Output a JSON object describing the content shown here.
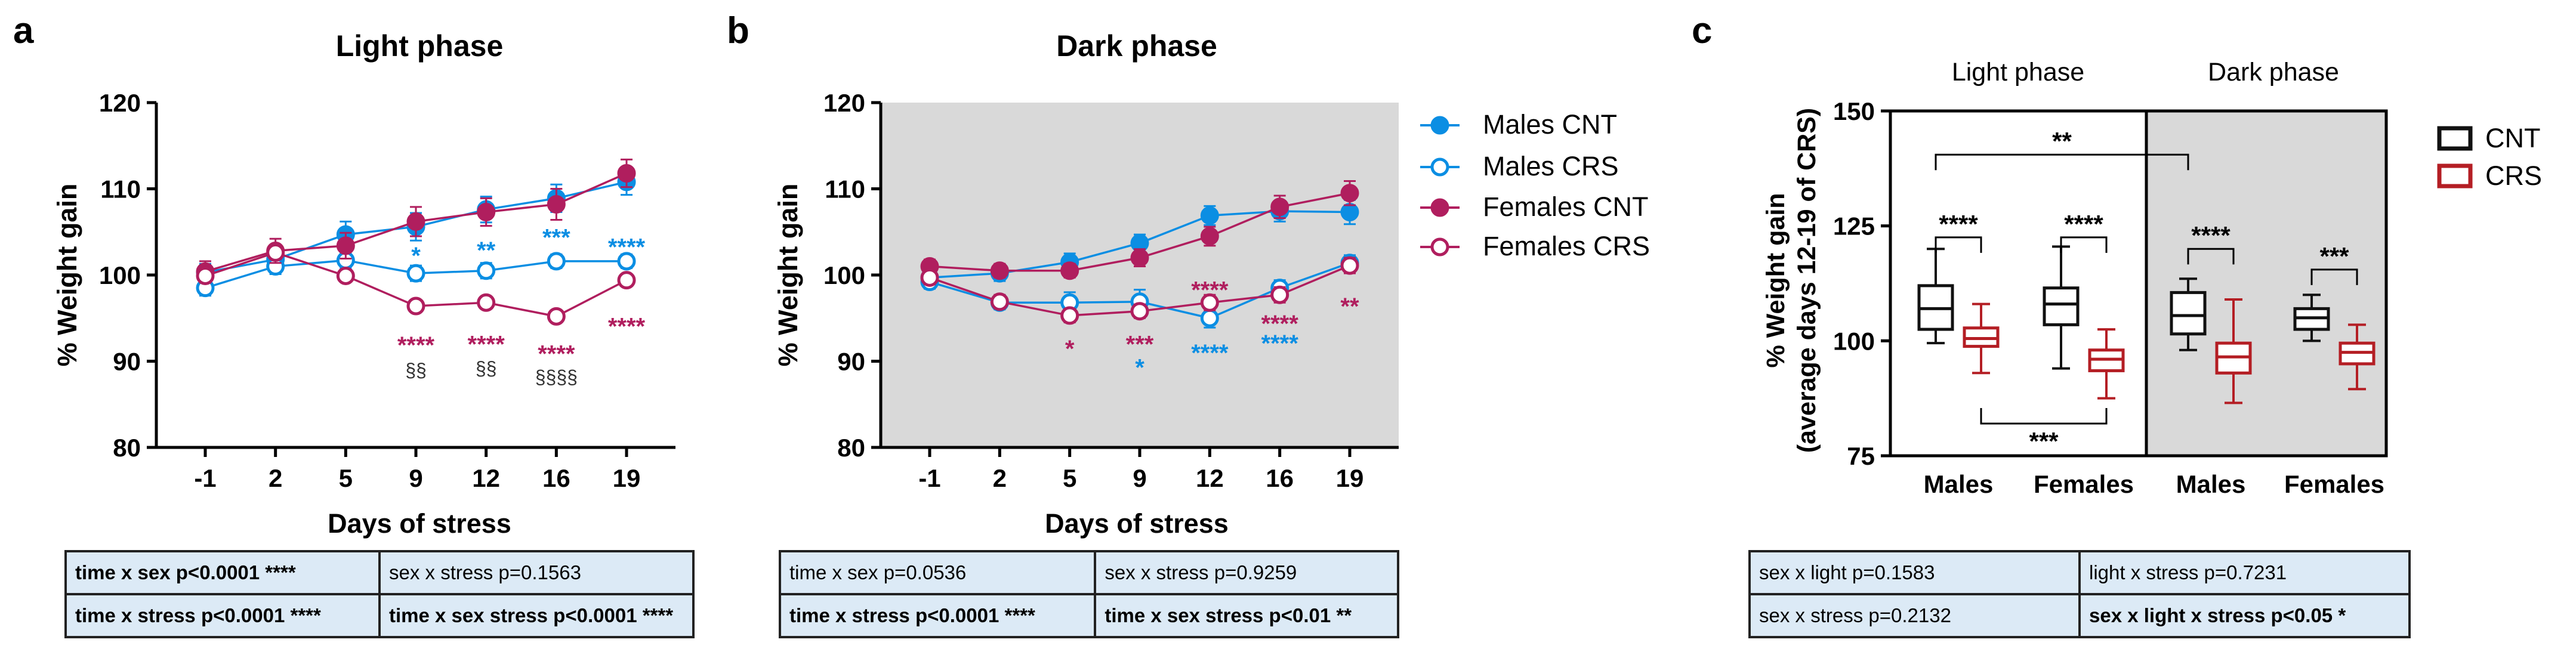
{
  "colors": {
    "males": "#0b8ee3",
    "females": "#b01e5e",
    "cnt_box": "#111111",
    "crs_box": "#b41e24",
    "dark_bg": "#d9d9d9",
    "table_bg": "#dceaf6"
  },
  "legend_line": {
    "males_cnt": "Males CNT",
    "males_crs": "Males CRS",
    "females_cnt": "Females CNT",
    "females_crs": "Females CRS"
  },
  "legend_box": {
    "cnt": "CNT",
    "crs": "CRS"
  },
  "chart_data": [
    {
      "panel": "a",
      "type": "line",
      "title": "Light phase",
      "xlabel": "Days of stress",
      "ylabel": "% Weight gain",
      "x": [
        -1,
        2,
        5,
        9,
        12,
        16,
        19
      ],
      "x_tick_labels": [
        "-1",
        "2",
        "5",
        "9",
        "12",
        "16",
        "19"
      ],
      "ylim": [
        80,
        120
      ],
      "yticks": [
        80,
        90,
        100,
        110,
        120
      ],
      "background": "white",
      "series": [
        {
          "name": "Males CNT",
          "values": [
            100.3,
            101.8,
            104.7,
            105.6,
            107.6,
            108.9,
            110.8
          ],
          "errors": [
            1.0,
            1.2,
            1.5,
            1.6,
            1.5,
            1.6,
            1.5
          ],
          "filled": true,
          "color": "#0b8ee3"
        },
        {
          "name": "Males CRS",
          "values": [
            98.5,
            101.0,
            101.7,
            100.2,
            100.5,
            101.6,
            101.6
          ],
          "errors": [
            0.9,
            0.9,
            0.9,
            0.9,
            0.9,
            0.8,
            0.8
          ],
          "filled": false,
          "color": "#0b8ee3"
        },
        {
          "name": "Females CNT",
          "values": [
            100.4,
            102.8,
            103.4,
            106.2,
            107.3,
            108.2,
            111.8
          ],
          "errors": [
            1.2,
            1.4,
            1.5,
            1.7,
            1.6,
            1.8,
            1.6
          ],
          "filled": true,
          "color": "#b01e5e"
        },
        {
          "name": "Females CRS",
          "values": [
            99.9,
            102.6,
            99.9,
            96.4,
            96.8,
            95.2,
            99.4
          ],
          "errors": [
            0.8,
            0.8,
            0.6,
            0.6,
            0.5,
            0.5,
            0.6
          ],
          "filled": false,
          "color": "#b01e5e"
        }
      ],
      "annotations": [
        {
          "x": 9,
          "y": 102.3,
          "text": "*",
          "color": "#0b8ee3"
        },
        {
          "x": 12,
          "y": 102.9,
          "text": "**",
          "color": "#0b8ee3"
        },
        {
          "x": 16,
          "y": 104.4,
          "text": "***",
          "color": "#0b8ee3"
        },
        {
          "x": 19,
          "y": 103.3,
          "text": "****",
          "color": "#0b8ee3"
        },
        {
          "x": 9,
          "y": 91.9,
          "text": "****",
          "color": "#b01e5e"
        },
        {
          "x": 12,
          "y": 92.0,
          "text": "****",
          "color": "#b01e5e"
        },
        {
          "x": 16,
          "y": 90.9,
          "text": "****",
          "color": "#b01e5e"
        },
        {
          "x": 19,
          "y": 94.1,
          "text": "****",
          "color": "#b01e5e"
        },
        {
          "x": 9,
          "y": 88.9,
          "text": "§§",
          "color": "#333333"
        },
        {
          "x": 12,
          "y": 89.1,
          "text": "§§",
          "color": "#333333"
        },
        {
          "x": 16,
          "y": 88.1,
          "text": "§§§§",
          "color": "#333333"
        }
      ],
      "stats_table": [
        [
          {
            "text": "time x sex p<0.0001 ****",
            "bold": true
          },
          {
            "text": "sex x stress p=0.1563",
            "bold": false
          }
        ],
        [
          {
            "text": "time x stress p<0.0001 ****",
            "bold": true
          },
          {
            "text": "time x sex stress p<0.0001 ****",
            "bold": true
          }
        ]
      ]
    },
    {
      "panel": "b",
      "type": "line",
      "title": "Dark phase",
      "xlabel": "Days of stress",
      "ylabel": "% Weight gain",
      "x": [
        -1,
        2,
        5,
        9,
        12,
        16,
        19
      ],
      "x_tick_labels": [
        "-1",
        "2",
        "5",
        "9",
        "12",
        "16",
        "19"
      ],
      "ylim": [
        80,
        120
      ],
      "yticks": [
        80,
        90,
        100,
        110,
        120
      ],
      "background": "grey",
      "series": [
        {
          "name": "Males CNT",
          "values": [
            99.7,
            100.2,
            101.5,
            103.7,
            106.9,
            107.4,
            107.3
          ],
          "errors": [
            0.9,
            0.9,
            1.0,
            1.0,
            1.1,
            1.2,
            1.4
          ],
          "filled": true,
          "color": "#0b8ee3"
        },
        {
          "name": "Males CRS",
          "values": [
            99.2,
            96.8,
            96.8,
            96.9,
            95.0,
            98.5,
            101.4
          ],
          "errors": [
            0.8,
            0.8,
            1.2,
            1.4,
            1.1,
            0.9,
            0.9
          ],
          "filled": false,
          "color": "#0b8ee3"
        },
        {
          "name": "Females CNT",
          "values": [
            101.0,
            100.5,
            100.5,
            102.0,
            104.5,
            107.9,
            109.5
          ],
          "errors": [
            0.8,
            0.8,
            0.8,
            1.0,
            1.1,
            1.3,
            1.4
          ],
          "filled": true,
          "color": "#b01e5e"
        },
        {
          "name": "Females CRS",
          "values": [
            99.7,
            96.9,
            95.3,
            95.8,
            96.8,
            97.7,
            101.1
          ],
          "errors": [
            0.8,
            0.8,
            0.8,
            0.8,
            0.9,
            0.9,
            0.9
          ],
          "filled": false,
          "color": "#b01e5e"
        }
      ],
      "annotations": [
        {
          "x": 5,
          "y": 91.5,
          "text": "*",
          "color": "#b01e5e"
        },
        {
          "x": 9,
          "y": 92.0,
          "text": "***",
          "color": "#b01e5e"
        },
        {
          "x": 9,
          "y": 89.3,
          "text": "*",
          "color": "#0b8ee3"
        },
        {
          "x": 12,
          "y": 98.3,
          "text": "****",
          "color": "#b01e5e"
        },
        {
          "x": 12,
          "y": 91.0,
          "text": "****",
          "color": "#0b8ee3"
        },
        {
          "x": 16,
          "y": 94.4,
          "text": "****",
          "color": "#b01e5e"
        },
        {
          "x": 16,
          "y": 92.1,
          "text": "****",
          "color": "#0b8ee3"
        },
        {
          "x": 19,
          "y": 96.4,
          "text": "**",
          "color": "#b01e5e"
        }
      ],
      "stats_table": [
        [
          {
            "text": "time x sex p=0.0536",
            "bold": false
          },
          {
            "text": "sex x stress p=0.9259",
            "bold": false
          }
        ],
        [
          {
            "text": "time x stress p<0.0001 ****",
            "bold": true
          },
          {
            "text": "time x sex stress p<0.01 **",
            "bold": true
          }
        ]
      ]
    },
    {
      "panel": "c",
      "type": "box",
      "ylabel_line1": "% Weight gain",
      "ylabel_line2": "(average days 12-19 of CRS)",
      "ylim": [
        75,
        150
      ],
      "yticks": [
        75,
        100,
        125,
        150
      ],
      "phase_labels": [
        "Light phase",
        "Dark phase"
      ],
      "categories": [
        "Males",
        "Females",
        "Males",
        "Females"
      ],
      "boxes": [
        {
          "group": "CNT",
          "category": 0,
          "min": 99.5,
          "q1": 102.5,
          "median": 107.0,
          "q3": 112.0,
          "max": 120.0
        },
        {
          "group": "CRS",
          "category": 0,
          "min": 93.0,
          "q1": 98.8,
          "median": 100.5,
          "q3": 102.8,
          "max": 108.0
        },
        {
          "group": "CNT",
          "category": 1,
          "min": 94.0,
          "q1": 103.5,
          "median": 108.0,
          "q3": 111.5,
          "max": 120.5
        },
        {
          "group": "CRS",
          "category": 1,
          "min": 87.5,
          "q1": 93.5,
          "median": 96.0,
          "q3": 98.0,
          "max": 102.5
        },
        {
          "group": "CNT",
          "category": 2,
          "min": 98.0,
          "q1": 101.5,
          "median": 105.5,
          "q3": 110.5,
          "max": 113.5
        },
        {
          "group": "CRS",
          "category": 2,
          "min": 86.5,
          "q1": 93.0,
          "median": 96.5,
          "q3": 99.5,
          "max": 109.0
        },
        {
          "group": "CNT",
          "category": 3,
          "min": 100.0,
          "q1": 102.5,
          "median": 105.0,
          "q3": 107.0,
          "max": 110.0
        },
        {
          "group": "CRS",
          "category": 3,
          "min": 89.5,
          "q1": 95.0,
          "median": 97.5,
          "q3": 99.5,
          "max": 103.5
        }
      ],
      "brackets": [
        {
          "label": "****",
          "level": 122.5
        },
        {
          "label": "****",
          "level": 122.5
        },
        {
          "label": "****",
          "level": 120.0
        },
        {
          "label": "***",
          "level": 115.5
        },
        {
          "label": "**",
          "level": 140.5
        },
        {
          "label": "***",
          "level": 82.0
        }
      ],
      "stats_table": [
        [
          {
            "text": "sex x light p=0.1583",
            "bold": false
          },
          {
            "text": "light x stress p=0.7231",
            "bold": false
          }
        ],
        [
          {
            "text": "sex x stress p=0.2132",
            "bold": false
          },
          {
            "text": "sex x light x stress p<0.05 *",
            "bold": true
          }
        ]
      ]
    }
  ]
}
